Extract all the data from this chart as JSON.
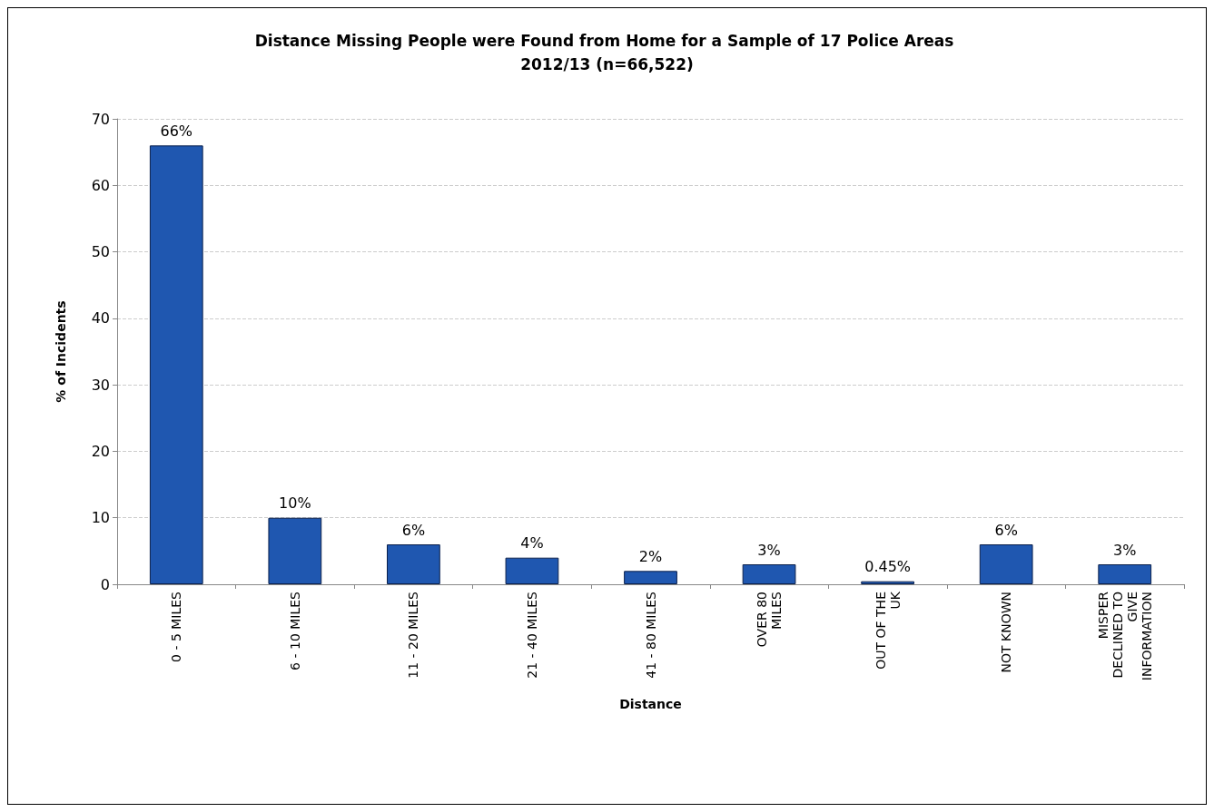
{
  "chart_data": {
    "type": "bar",
    "title": "Distance Missing People were Found from Home for a Sample of 17 Police Areas 2012/13 (n=66,522)",
    "xlabel": "Distance",
    "ylabel": "% of Incidents",
    "categories": [
      "0 - 5 MILES",
      "6 - 10 MILES",
      "11 - 20 MILES",
      "21 - 40 MILES",
      "41 - 80 MILES",
      "OVER 80\nMILES",
      "OUT OF THE\nUK",
      "NOT KNOWN",
      "MISPER\nDECLINED TO\nGIVE\nINFORMATION"
    ],
    "values": [
      66,
      10,
      6,
      4,
      2,
      3,
      0.45,
      6,
      3
    ],
    "value_labels": [
      "66%",
      "10%",
      "6%",
      "4%",
      "2%",
      "3%",
      "0.45%",
      "6%",
      "3%"
    ],
    "color": "#1f57b0",
    "ylim": [
      0,
      70
    ],
    "yticks": [
      0,
      10,
      20,
      30,
      40,
      50,
      60,
      70
    ],
    "grid": "y"
  }
}
